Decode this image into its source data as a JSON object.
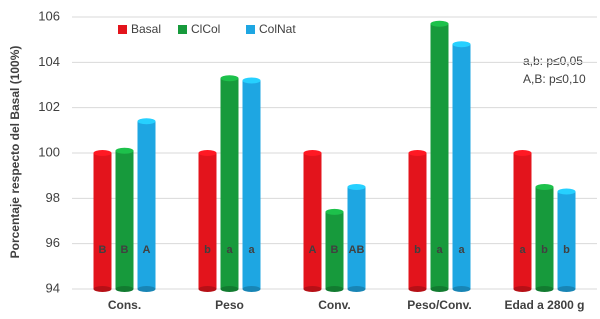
{
  "chart_data": {
    "type": "bar",
    "y_label": "Porcentaje respecto del Basal (100%)",
    "categories": [
      "Cons.",
      "Peso",
      "Conv.",
      "Peso/Conv.",
      "Edad a 2800 g"
    ],
    "series": [
      {
        "name": "Basal",
        "color": "#e3141c",
        "values": [
          100,
          100,
          100,
          100,
          100
        ],
        "letters": [
          "B",
          "b",
          "A",
          "b",
          "a"
        ]
      },
      {
        "name": "ClCol",
        "color": "#179a3c",
        "values": [
          100.1,
          103.3,
          97.4,
          105.7,
          98.5
        ],
        "letters": [
          "B",
          "a",
          "B",
          "a",
          "b"
        ]
      },
      {
        "name": "ColNat",
        "color": "#1ea6e2",
        "values": [
          101.4,
          103.2,
          98.5,
          104.8,
          98.3
        ],
        "letters": [
          "A",
          "a",
          "AB",
          "a",
          "b"
        ]
      }
    ],
    "annotations": [
      "a,b: p≤0,05",
      "A,B: p≤0,10"
    ],
    "ylim": [
      94,
      106
    ],
    "yticks": [
      94,
      96,
      98,
      100,
      102,
      104,
      106
    ],
    "grid": true
  }
}
